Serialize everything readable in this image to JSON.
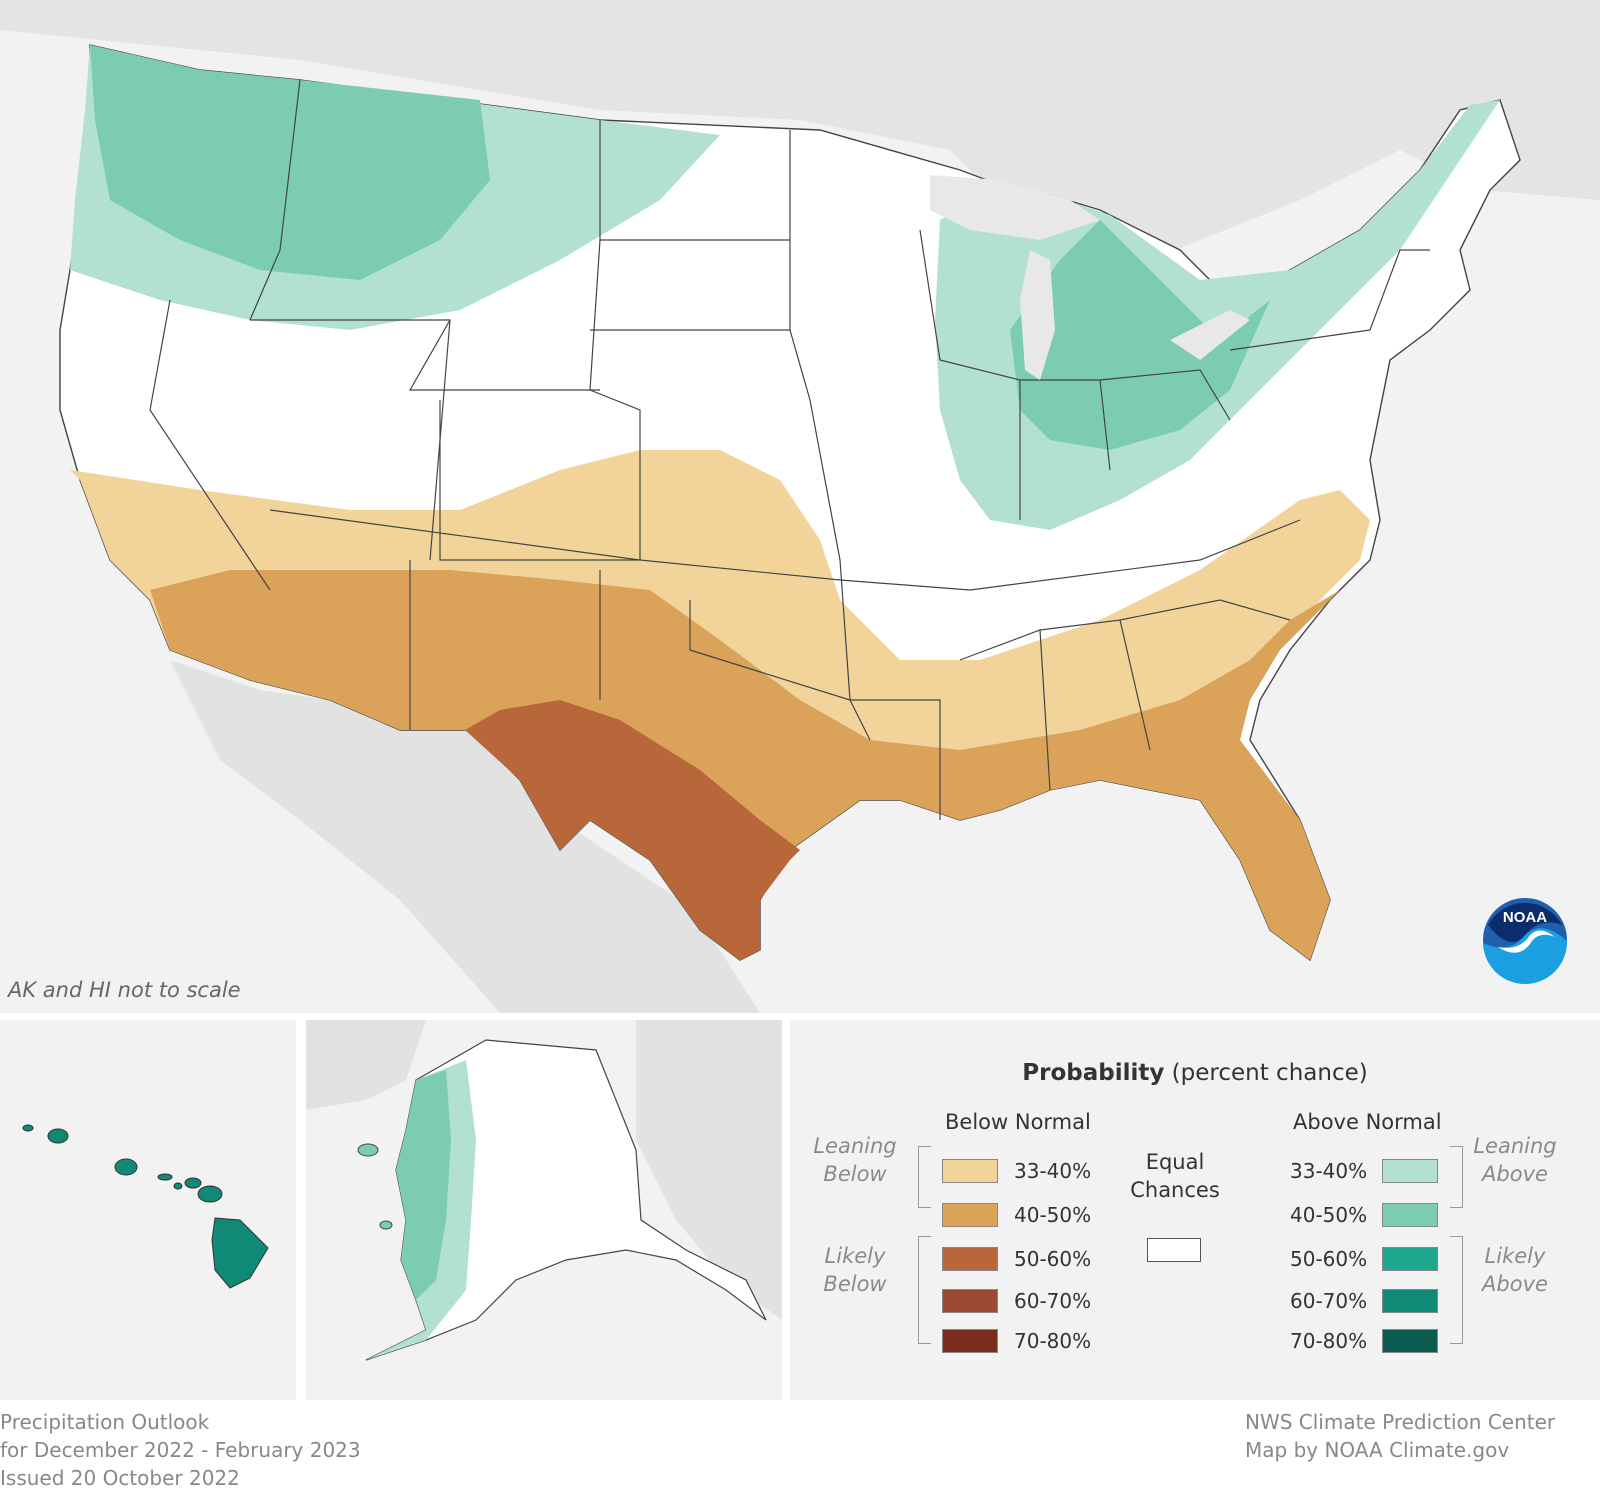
{
  "map_note": "AK and HI not to scale",
  "legend": {
    "title_bold": "Probability",
    "title_rest": " (percent chance)",
    "below_header": "Below Normal",
    "above_header": "Above Normal",
    "leaning_below": "Leaning Below",
    "likely_below": "Likely Below",
    "leaning_above": "Leaning Above",
    "likely_above": "Likely Above",
    "equal_chances": "Equal Chances",
    "below_items": [
      {
        "label": "33-40%",
        "color": "#f2d49a"
      },
      {
        "label": "40-50%",
        "color": "#dba35a"
      },
      {
        "label": "50-60%",
        "color": "#b8673a"
      },
      {
        "label": "60-70%",
        "color": "#9a4a30"
      },
      {
        "label": "70-80%",
        "color": "#7a2e1e"
      }
    ],
    "above_items": [
      {
        "label": "33-40%",
        "color": "#b2e0d2"
      },
      {
        "label": "40-50%",
        "color": "#7ccbb3"
      },
      {
        "label": "50-60%",
        "color": "#1ea98e"
      },
      {
        "label": "60-70%",
        "color": "#108a77"
      },
      {
        "label": "70-80%",
        "color": "#0b5c50"
      }
    ]
  },
  "footer": {
    "left_lines": [
      "Precipitation Outlook",
      "for December 2022 - February 2023",
      "Issued 20 October 2022"
    ],
    "right_lines": [
      "NWS Climate Prediction Center",
      "Map by NOAA Climate.gov"
    ]
  },
  "logo_text": "NOAA",
  "colors": {
    "background": "#f2f2f2",
    "land": "#e2e2e2",
    "equal_chances": "#ffffff",
    "hawaii": "#108a77"
  }
}
